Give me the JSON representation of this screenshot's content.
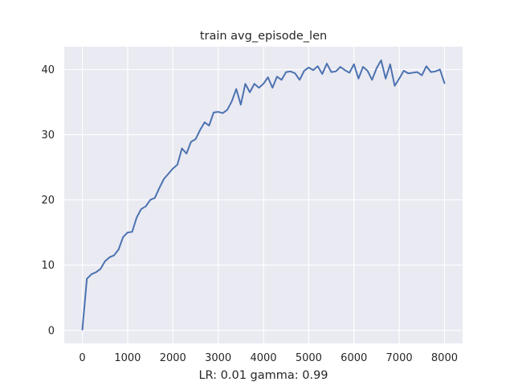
{
  "chart_data": {
    "type": "line",
    "title": "train avg_episode_len",
    "xlabel": "LR: 0.01 gamma: 0.99",
    "ylabel": "",
    "xlim": [
      -400,
      8400
    ],
    "ylim": [
      -2,
      43.5
    ],
    "xticks": [
      0,
      1000,
      2000,
      3000,
      4000,
      5000,
      6000,
      7000,
      8000
    ],
    "xtick_labels": [
      "0",
      "1000",
      "2000",
      "3000",
      "4000",
      "5000",
      "6000",
      "7000",
      "8000"
    ],
    "yticks": [
      0,
      10,
      20,
      30,
      40
    ],
    "ytick_labels": [
      "0",
      "10",
      "20",
      "30",
      "40"
    ],
    "grid": true,
    "legend": "none",
    "series": [
      {
        "color": "#4c72b0",
        "x": [
          0,
          100,
          200,
          300,
          400,
          500,
          600,
          700,
          800,
          900,
          1000,
          1100,
          1200,
          1300,
          1400,
          1500,
          1600,
          1700,
          1800,
          1900,
          2000,
          2100,
          2200,
          2300,
          2400,
          2500,
          2600,
          2700,
          2800,
          2900,
          3000,
          3100,
          3200,
          3300,
          3400,
          3500,
          3600,
          3700,
          3800,
          3900,
          4000,
          4100,
          4200,
          4300,
          4400,
          4500,
          4600,
          4700,
          4800,
          4900,
          5000,
          5100,
          5200,
          5300,
          5400,
          5500,
          5600,
          5700,
          5800,
          5900,
          6000,
          6100,
          6200,
          6300,
          6400,
          6500,
          6600,
          6700,
          6800,
          6900,
          7000,
          7100,
          7200,
          7300,
          7400,
          7500,
          7600,
          7700,
          7800,
          7900,
          8000
        ],
        "y": [
          0.1,
          7.9,
          8.6,
          8.9,
          9.4,
          10.6,
          11.2,
          11.5,
          12.4,
          14.3,
          15.0,
          15.1,
          17.3,
          18.6,
          19.0,
          20.0,
          20.3,
          21.8,
          23.2,
          24.0,
          24.8,
          25.4,
          27.9,
          27.1,
          28.9,
          29.3,
          30.7,
          31.9,
          31.4,
          33.4,
          33.5,
          33.3,
          33.8,
          35.1,
          37.0,
          34.6,
          37.8,
          36.5,
          37.8,
          37.2,
          37.8,
          38.8,
          37.2,
          38.9,
          38.4,
          39.6,
          39.7,
          39.4,
          38.4,
          39.8,
          40.3,
          39.9,
          40.5,
          39.3,
          40.9,
          39.6,
          39.7,
          40.4,
          39.9,
          39.5,
          40.8,
          38.6,
          40.4,
          39.8,
          38.4,
          40.2,
          41.4,
          38.6,
          40.8,
          37.5,
          38.6,
          39.8,
          39.4,
          39.5,
          39.6,
          39.1,
          40.5,
          39.6,
          39.7,
          40.0,
          37.9
        ]
      }
    ]
  }
}
